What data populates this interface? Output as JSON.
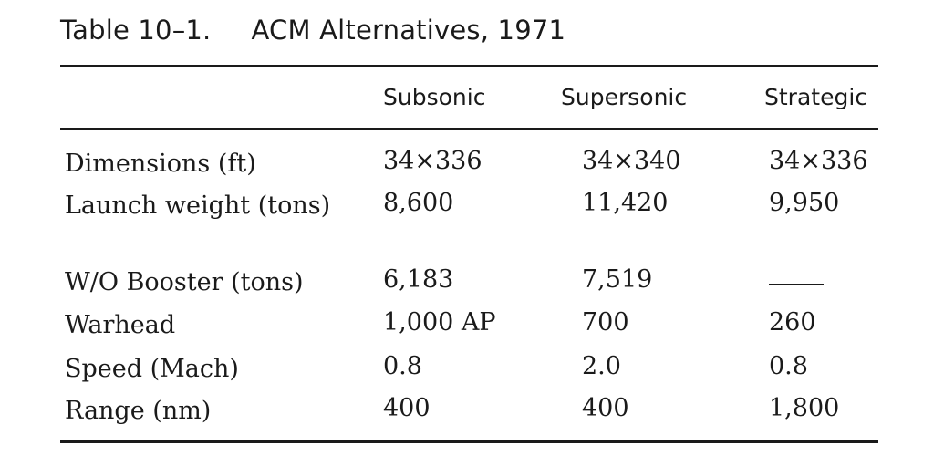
{
  "caption": {
    "number": "Table 10–1.",
    "title": "ACM Alternatives, 1971"
  },
  "columns": [
    "Subsonic",
    "Supersonic",
    "Strategic"
  ],
  "rows": [
    {
      "label": "Dimensions (ft)",
      "values": [
        "34×336",
        "34×340",
        "34×336"
      ]
    },
    {
      "label": "Launch weight (tons)",
      "values": [
        "8,600",
        "11,420",
        "9,950"
      ]
    },
    {
      "label": "W/O Booster (tons)",
      "values": [
        "6,183",
        "7,519",
        ""
      ]
    },
    {
      "label": "Warhead",
      "values": [
        "1,000 AP",
        "700",
        "260"
      ]
    },
    {
      "label": "Speed (Mach)",
      "values": [
        "0.8",
        "2.0",
        "0.8"
      ]
    },
    {
      "label": "Range (nm)",
      "values": [
        "400",
        "400",
        "1,800"
      ]
    }
  ]
}
